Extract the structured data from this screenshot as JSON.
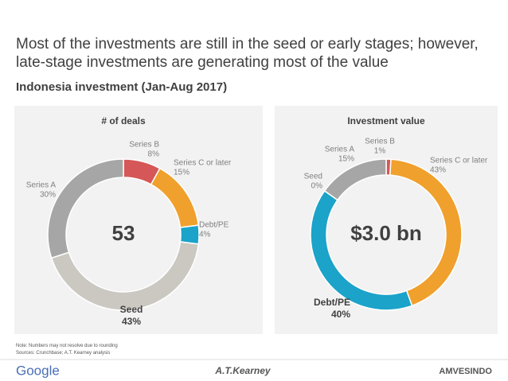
{
  "title": "Most of the investments are still in the seed or early stages; however, late-stage investments are generating most of the value",
  "subtitle": "Indonesia investment (Jan-Aug 2017)",
  "chart_data": [
    {
      "type": "donut",
      "title": "# of deals",
      "center_label": "53",
      "categories": [
        "Series B",
        "Series C or later",
        "Debt/PE",
        "Seed",
        "Series A"
      ],
      "values": [
        8,
        15,
        4,
        43,
        30
      ],
      "value_labels": [
        "8%",
        "15%",
        "4%",
        "43%",
        "30%"
      ],
      "colors": [
        "#d55757",
        "#f0a02c",
        "#1ba3c9",
        "#cbc8c2",
        "#a6a6a6"
      ]
    },
    {
      "type": "donut",
      "title": "Investment value",
      "center_label": "$3.0 bn",
      "categories": [
        "Series B",
        "Series C or later",
        "Debt/PE",
        "Seed",
        "Series A"
      ],
      "values": [
        1,
        43,
        40,
        0,
        15
      ],
      "value_labels": [
        "1%",
        "43%",
        "40%",
        "0%",
        "15%"
      ],
      "colors": [
        "#d55757",
        "#f0a02c",
        "#1ba3c9",
        "#cbc8c2",
        "#a6a6a6"
      ]
    }
  ],
  "notes": [
    "Note: Numbers may not resolve due to rounding",
    "Sources: Crunchbase; A.T. Kearney analysis"
  ],
  "logos": [
    "Google",
    "A.T.Kearney",
    "AMVESINDO"
  ]
}
